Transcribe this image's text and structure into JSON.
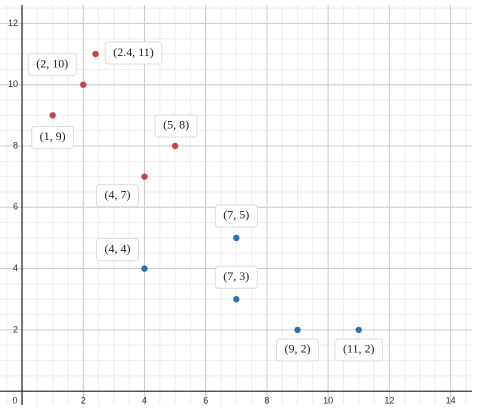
{
  "chart_data": {
    "type": "scatter",
    "xlim": [
      -0.72,
      14.7
    ],
    "ylim": [
      -0.45,
      12.6
    ],
    "xticks": [
      0,
      2,
      4,
      6,
      8,
      10,
      12,
      14
    ],
    "yticks": [
      2,
      4,
      6,
      8,
      10,
      12
    ],
    "grid": true,
    "series": [
      {
        "color": "#c74440",
        "x": [
          1,
          2,
          2.4,
          4,
          5
        ],
        "values": [
          9,
          10,
          11,
          7,
          8
        ],
        "point_labels": [
          "(1, 9)",
          "(2, 10)",
          "(2.4, 11)",
          "(4, 7)",
          "(5, 8)"
        ]
      },
      {
        "color": "#2d70b3",
        "x": [
          4,
          7,
          7,
          9,
          11
        ],
        "values": [
          4,
          5,
          3,
          2,
          2
        ],
        "point_labels": [
          "(4, 4)",
          "(7, 5)",
          "(7, 3)",
          "(9, 2)",
          "(11, 2)"
        ]
      }
    ]
  }
}
